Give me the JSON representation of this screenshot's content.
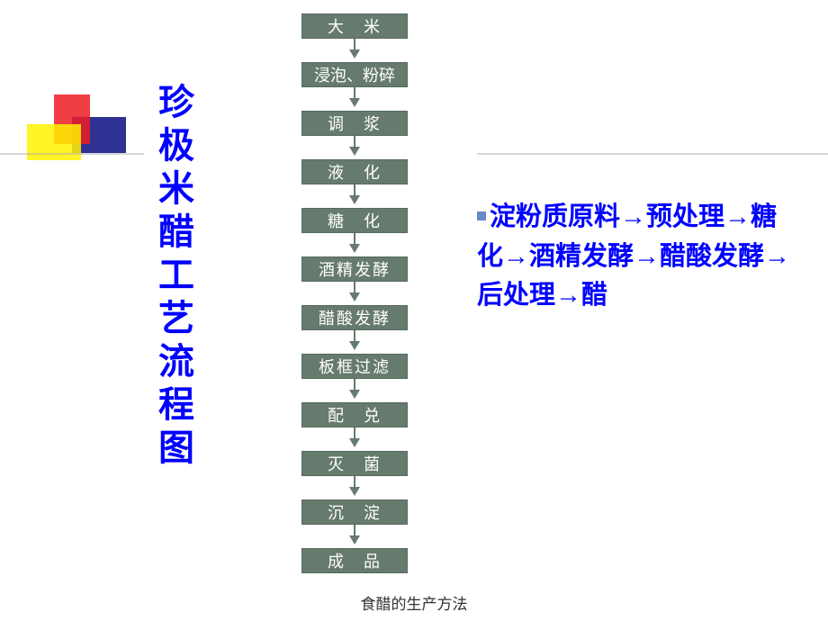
{
  "slide": {
    "vertical_title": "珍极米醋工艺流程图",
    "footer": "食醋的生产方法"
  },
  "flowchart": {
    "type": "flowchart",
    "box_bg": "#667a6e",
    "box_text_color": "#ffffff",
    "arrow_color": "#667a6e",
    "box_fontsize": 18,
    "nodes": [
      {
        "label": "大　米",
        "spacing": "spaced"
      },
      {
        "label": "浸泡、粉碎",
        "spacing": "wide"
      },
      {
        "label": "调　浆",
        "spacing": "spaced"
      },
      {
        "label": "液　化",
        "spacing": "spaced"
      },
      {
        "label": "糖　化",
        "spacing": "spaced"
      },
      {
        "label": "酒精发酵",
        "spacing": "normal"
      },
      {
        "label": "醋酸发酵",
        "spacing": "normal"
      },
      {
        "label": "板框过滤",
        "spacing": "normal"
      },
      {
        "label": "配　兑",
        "spacing": "spaced"
      },
      {
        "label": "灭　菌",
        "spacing": "spaced"
      },
      {
        "label": "沉　淀",
        "spacing": "spaced"
      },
      {
        "label": "成　品",
        "spacing": "spaced"
      }
    ]
  },
  "right_text": {
    "content": "淀粉质原料→预处理→糖化→酒精发酵→醋酸发酵→后处理→醋",
    "color": "#0000ff",
    "fontsize": 29,
    "bullet_color": "#6688cc"
  },
  "decorative": {
    "shape_blue": "#2e3192",
    "shape_red": "#ed1c24",
    "shape_yellow": "#fff200"
  }
}
